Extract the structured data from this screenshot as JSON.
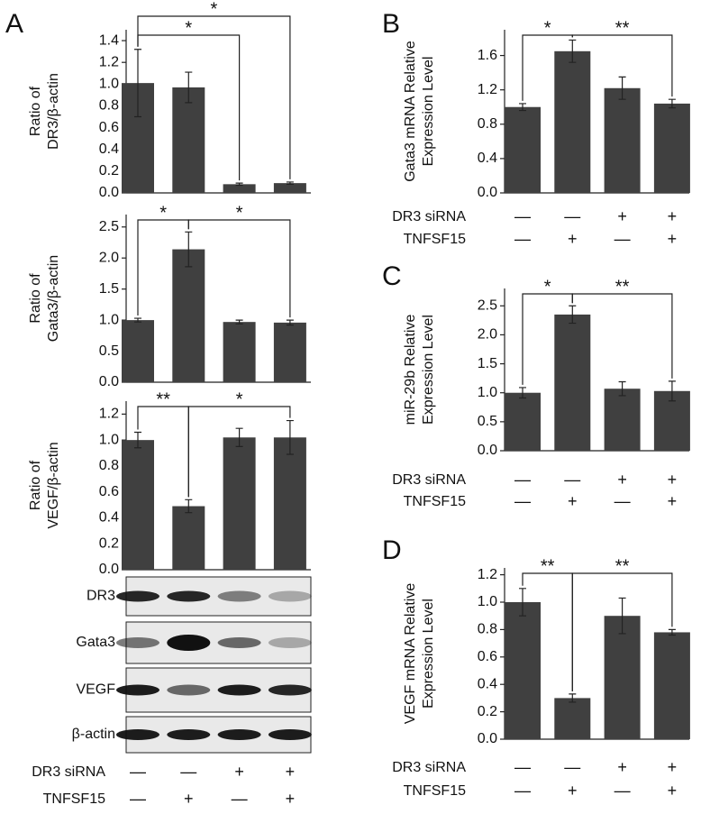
{
  "chart_data": [
    {
      "type": "bar",
      "panel_label": "A",
      "ylabel": [
        "Ratio of",
        "DR3/β-actin"
      ],
      "color": "#404040",
      "values": [
        1.01,
        0.97,
        0.08,
        0.09
      ],
      "errors": [
        0.31,
        0.14,
        0.01,
        0.01
      ],
      "ylim": [
        0,
        1.5
      ],
      "yticks": [
        {
          "value": 0,
          "label": "0.0"
        },
        0.2,
        0.4,
        0.6,
        0.8,
        {
          "value": 1,
          "label": "1.0"
        },
        1.2,
        1.4
      ],
      "significance": [
        {
          "text": "*",
          "from": 0,
          "to": 3
        },
        {
          "text": "*",
          "from": 0,
          "to": 2
        }
      ]
    },
    {
      "type": "bar",
      "ylabel": [
        "Ratio of",
        "Gata3/β-actin"
      ],
      "color": "#404040",
      "values": [
        1.0,
        2.14,
        0.97,
        0.96
      ],
      "errors": [
        0.03,
        0.28,
        0.03,
        0.04
      ],
      "ylim": [
        0,
        2.7
      ],
      "yticks": [
        {
          "value": 0,
          "label": "0.0"
        },
        0.5,
        {
          "value": 1,
          "label": "1.0"
        },
        1.5,
        {
          "value": 2,
          "label": "2.0"
        },
        2.5
      ],
      "significance": [
        {
          "text": "*",
          "from": 0,
          "to": 1
        },
        {
          "text": "*",
          "from": 1,
          "to": 3
        }
      ]
    },
    {
      "type": "bar",
      "ylabel": [
        "Ratio of",
        "VEGF/β-actin"
      ],
      "color": "#404040",
      "values": [
        1.0,
        0.49,
        1.02,
        1.02
      ],
      "errors": [
        0.06,
        0.05,
        0.07,
        0.13
      ],
      "ylim": [
        0,
        1.3
      ],
      "yticks": [
        {
          "value": 0,
          "label": "0.0"
        },
        0.2,
        0.4,
        0.6,
        0.8,
        {
          "value": 1,
          "label": "1.0"
        },
        1.2
      ],
      "significance": [
        {
          "text": "**",
          "from": 0,
          "to": 1
        },
        {
          "text": "*",
          "from": 1,
          "to": 3
        }
      ],
      "blot_labels": [
        "DR3",
        "Gata3",
        "VEGF",
        "β-actin"
      ],
      "conditions": [
        {
          "name": "DR3 siRNA",
          "signs": [
            "—",
            "—",
            "+",
            "+"
          ]
        },
        {
          "name": "TNFSF15",
          "signs": [
            "—",
            "+",
            "—",
            "+"
          ]
        }
      ]
    },
    {
      "type": "bar",
      "panel_label": "B",
      "ylabel": [
        "Gata3 mRNA Relative",
        "Expression Level"
      ],
      "color": "#404040",
      "values": [
        1.0,
        1.65,
        1.22,
        1.04
      ],
      "errors": [
        0.04,
        0.13,
        0.13,
        0.05
      ],
      "ylim": [
        0,
        1.9
      ],
      "yticks": [
        {
          "value": 0,
          "label": "0.0"
        },
        0.4,
        0.8,
        1.2,
        1.6
      ],
      "significance": [
        {
          "text": "*",
          "from": 0,
          "to": 1
        },
        {
          "text": "**",
          "from": 1,
          "to": 3
        }
      ],
      "conditions": [
        {
          "name": "DR3 siRNA",
          "signs": [
            "—",
            "—",
            "+",
            "+"
          ]
        },
        {
          "name": "TNFSF15",
          "signs": [
            "—",
            "+",
            "—",
            "+"
          ]
        }
      ]
    },
    {
      "type": "bar",
      "panel_label": "C",
      "ylabel": [
        "miR-29b Relative",
        "Expression Level"
      ],
      "color": "#404040",
      "values": [
        1.0,
        2.35,
        1.07,
        1.03
      ],
      "errors": [
        0.09,
        0.15,
        0.12,
        0.17
      ],
      "ylim": [
        0,
        2.8
      ],
      "yticks": [
        {
          "value": 0,
          "label": "0.0"
        },
        0.5,
        {
          "value": 1,
          "label": "1.0"
        },
        1.5,
        {
          "value": 2,
          "label": "2.0"
        },
        2.5
      ],
      "significance": [
        {
          "text": "*",
          "from": 0,
          "to": 1
        },
        {
          "text": "**",
          "from": 1,
          "to": 3
        }
      ],
      "conditions": [
        {
          "name": "DR3 siRNA",
          "signs": [
            "—",
            "—",
            "+",
            "+"
          ]
        },
        {
          "name": "TNFSF15",
          "signs": [
            "—",
            "+",
            "—",
            "+"
          ]
        }
      ]
    },
    {
      "type": "bar",
      "panel_label": "D",
      "ylabel": [
        "VEGF mRNA Relative",
        "Expression Level"
      ],
      "color": "#404040",
      "values": [
        1.0,
        0.3,
        0.9,
        0.78
      ],
      "errors": [
        0.1,
        0.03,
        0.13,
        0.02
      ],
      "ylim": [
        0,
        1.25
      ],
      "yticks": [
        {
          "value": 0,
          "label": "0.0"
        },
        0.2,
        0.4,
        0.6,
        0.8,
        {
          "value": 1,
          "label": "1.0"
        },
        1.2
      ],
      "significance": [
        {
          "text": "**",
          "from": 0,
          "to": 1
        },
        {
          "text": "**",
          "from": 1,
          "to": 3
        }
      ],
      "conditions": [
        {
          "name": "DR3 siRNA",
          "signs": [
            "—",
            "—",
            "+",
            "+"
          ]
        },
        {
          "name": "TNFSF15",
          "signs": [
            "—",
            "+",
            "—",
            "+"
          ]
        }
      ]
    }
  ]
}
